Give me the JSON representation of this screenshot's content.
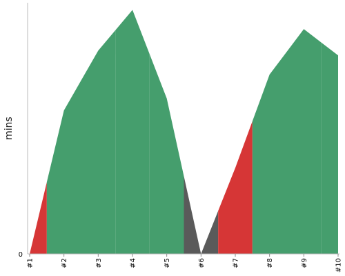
{
  "chart_data": {
    "type": "area",
    "categories": [
      "#1",
      "#2",
      "#3",
      "#4",
      "#5",
      "#6",
      "#7",
      "#8",
      "#9",
      "#10"
    ],
    "values": [
      0,
      6,
      8.5,
      10.2,
      6.5,
      0,
      3.6,
      7.5,
      9.4,
      8.3
    ],
    "status": [
      "red",
      "green",
      "green",
      "green",
      "green",
      "gray",
      "red",
      "green",
      "green",
      "green"
    ],
    "status_colors": {
      "green": "#459e6d",
      "red": "#d63636",
      "gray": "#5a5a5a"
    },
    "ylabel": "mins",
    "xlabel": "",
    "ylim": [
      0,
      10.5
    ],
    "y_ticks": [
      "0"
    ],
    "grid": false
  }
}
